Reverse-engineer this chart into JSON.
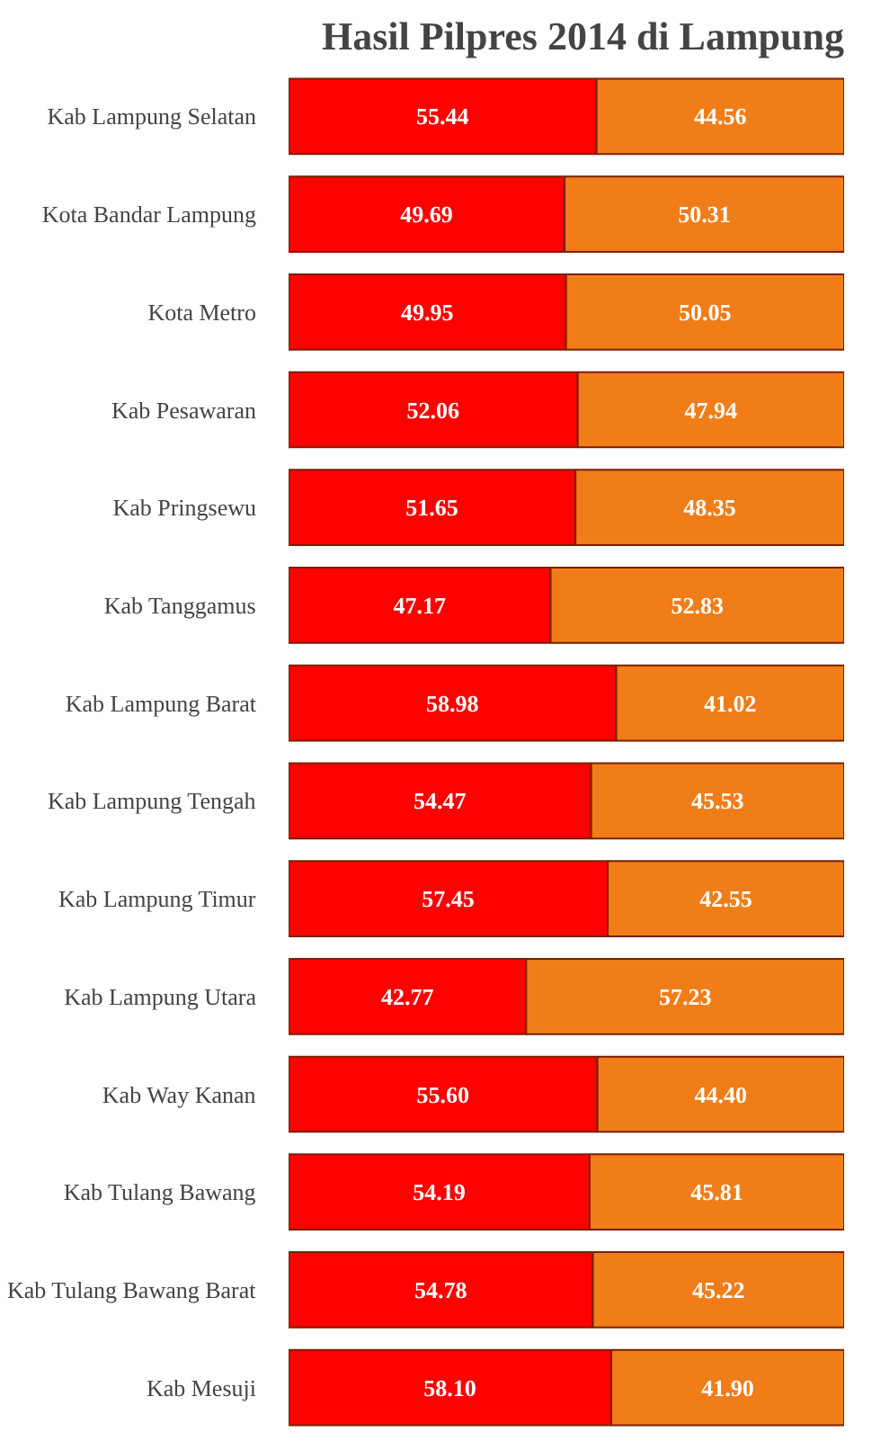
{
  "chart_data": {
    "type": "bar",
    "orientation": "horizontal",
    "stacked": true,
    "title": "Hasil Pilpres 2014 di Lampung",
    "categories": [
      "Kab Lampung Selatan",
      "Kota Bandar Lampung",
      "Kota Metro",
      "Kab Pesawaran",
      "Kab Pringsewu",
      "Kab Tanggamus",
      "Kab Lampung Barat",
      "Kab Lampung Tengah",
      "Kab Lampung Timur",
      "Kab Lampung Utara",
      "Kab Way Kanan",
      "Kab Tulang Bawang",
      "Kab Tulang Bawang Barat",
      "Kab Mesuji"
    ],
    "series": [
      {
        "color": "#ff0000",
        "values": [
          55.44,
          49.69,
          49.95,
          52.06,
          51.65,
          47.17,
          58.98,
          54.47,
          57.45,
          42.77,
          55.6,
          54.19,
          54.78,
          58.1
        ],
        "value_labels": [
          "55.44",
          "49.69",
          "49.95",
          "52.06",
          "51.65",
          "47.17",
          "58.98",
          "54.47",
          "57.45",
          "42.77",
          "55.60",
          "54.19",
          "54.78",
          "58.10"
        ]
      },
      {
        "color": "#f07d18",
        "values": [
          44.56,
          50.31,
          50.05,
          47.94,
          48.35,
          52.83,
          41.02,
          45.53,
          42.55,
          57.23,
          44.4,
          45.81,
          45.22,
          41.9
        ],
        "value_labels": [
          "44.56",
          "50.31",
          "50.05",
          "47.94",
          "48.35",
          "52.83",
          "41.02",
          "45.53",
          "42.55",
          "57.23",
          "44.40",
          "45.81",
          "45.22",
          "41.90"
        ]
      }
    ],
    "grid": false,
    "tick_labels": "y"
  }
}
